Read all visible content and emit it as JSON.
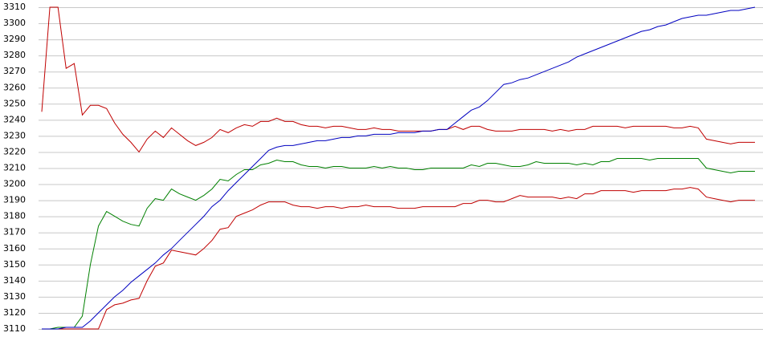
{
  "chart_data": {
    "type": "line",
    "ylim": [
      3110,
      3310
    ],
    "yticks": [
      3110,
      3120,
      3130,
      3140,
      3150,
      3160,
      3170,
      3180,
      3190,
      3200,
      3210,
      3220,
      3230,
      3240,
      3250,
      3260,
      3270,
      3280,
      3290,
      3300,
      3310
    ],
    "grid": true,
    "series": [
      {
        "color": "#c00000",
        "values": [
          3245,
          3310,
          3310,
          3272,
          3275,
          3243,
          3249,
          3249,
          3247,
          3238,
          3231,
          3226,
          3220,
          3228,
          3233,
          3229,
          3235,
          3231,
          3227,
          3224,
          3226,
          3229,
          3234,
          3232,
          3235,
          3237,
          3236,
          3239,
          3239,
          3241,
          3239,
          3239,
          3237,
          3236,
          3236,
          3235,
          3236,
          3236,
          3235,
          3234,
          3234,
          3235,
          3234,
          3234,
          3233,
          3233,
          3233,
          3233,
          3233,
          3234,
          3234,
          3236,
          3234,
          3236,
          3236,
          3234,
          3233,
          3233,
          3233,
          3234,
          3234,
          3234,
          3234,
          3233,
          3234,
          3233,
          3234,
          3234,
          3236,
          3236,
          3236,
          3236,
          3235,
          3236,
          3236,
          3236,
          3236,
          3236,
          3235,
          3235,
          3236,
          3235,
          3228,
          3227,
          3226,
          3225,
          3226,
          3226,
          3226
        ]
      },
      {
        "color": "#008000",
        "values": [
          3110,
          3110,
          3111,
          3111,
          3111,
          3118,
          3150,
          3174,
          3183,
          3180,
          3177,
          3175,
          3174,
          3185,
          3191,
          3190,
          3197,
          3194,
          3192,
          3190,
          3193,
          3197,
          3203,
          3202,
          3206,
          3209,
          3209,
          3212,
          3213,
          3215,
          3214,
          3214,
          3212,
          3211,
          3211,
          3210,
          3211,
          3211,
          3210,
          3210,
          3210,
          3211,
          3210,
          3211,
          3210,
          3210,
          3209,
          3209,
          3210,
          3210,
          3210,
          3210,
          3210,
          3212,
          3211,
          3213,
          3213,
          3212,
          3211,
          3211,
          3212,
          3214,
          3213,
          3213,
          3213,
          3213,
          3212,
          3213,
          3212,
          3214,
          3214,
          3216,
          3216,
          3216,
          3216,
          3215,
          3216,
          3216,
          3216,
          3216,
          3216,
          3216,
          3210,
          3209,
          3208,
          3207,
          3208,
          3208,
          3208
        ]
      },
      {
        "color": "#c00000",
        "values": [
          3110,
          3110,
          3110,
          3110,
          3110,
          3110,
          3110,
          3110,
          3122,
          3125,
          3126,
          3128,
          3129,
          3140,
          3149,
          3151,
          3159,
          3158,
          3157,
          3156,
          3160,
          3165,
          3172,
          3173,
          3180,
          3182,
          3184,
          3187,
          3189,
          3189,
          3189,
          3187,
          3186,
          3186,
          3185,
          3186,
          3186,
          3185,
          3186,
          3186,
          3187,
          3186,
          3186,
          3186,
          3185,
          3185,
          3185,
          3186,
          3186,
          3186,
          3186,
          3186,
          3188,
          3188,
          3190,
          3190,
          3189,
          3189,
          3191,
          3193,
          3192,
          3192,
          3192,
          3192,
          3191,
          3192,
          3191,
          3194,
          3194,
          3196,
          3196,
          3196,
          3196,
          3195,
          3196,
          3196,
          3196,
          3196,
          3197,
          3197,
          3198,
          3197,
          3192,
          3191,
          3190,
          3189,
          3190,
          3190,
          3190
        ]
      },
      {
        "color": "#0000c0",
        "values": [
          3110,
          3110,
          3110,
          3111,
          3111,
          3111,
          3115,
          3120,
          3125,
          3130,
          3134,
          3139,
          3143,
          3147,
          3151,
          3156,
          3160,
          3165,
          3170,
          3175,
          3180,
          3186,
          3190,
          3196,
          3201,
          3206,
          3211,
          3216,
          3221,
          3223,
          3224,
          3224,
          3225,
          3226,
          3227,
          3227,
          3228,
          3229,
          3229,
          3230,
          3230,
          3231,
          3231,
          3231,
          3232,
          3232,
          3232,
          3233,
          3233,
          3234,
          3234,
          3238,
          3242,
          3246,
          3248,
          3252,
          3257,
          3262,
          3263,
          3265,
          3266,
          3268,
          3270,
          3272,
          3274,
          3276,
          3279,
          3281,
          3283,
          3285,
          3287,
          3289,
          3291,
          3293,
          3295,
          3296,
          3298,
          3299,
          3301,
          3303,
          3304,
          3305,
          3305,
          3306,
          3307,
          3308,
          3308,
          3309,
          3310
        ]
      }
    ]
  }
}
